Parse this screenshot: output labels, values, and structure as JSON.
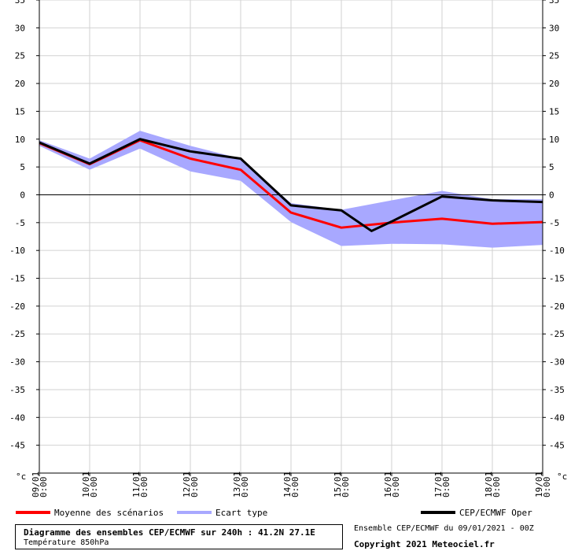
{
  "chart_data": {
    "type": "line",
    "title": "Diagramme des ensembles CEP/ECMWF sur 240h : 41.2N 27.1E",
    "subtitle": "Température 850hPa",
    "ylabel": "°c",
    "ylim": [
      -50,
      35
    ],
    "yticks": [
      35,
      30,
      25,
      20,
      15,
      10,
      5,
      0,
      -5,
      -10,
      -15,
      -20,
      -25,
      -30,
      -35,
      -40,
      -45
    ],
    "x_date_labels": [
      "09/01",
      "10/01",
      "11/01",
      "12/01",
      "13/01",
      "14/01",
      "15/01",
      "16/01",
      "17/01",
      "18/01",
      "19/01"
    ],
    "x_time_label": "0:00",
    "series": [
      {
        "name": "Moyenne des scénarios",
        "color": "#ff0000",
        "x": [
          0,
          1,
          2,
          3,
          4,
          5,
          6,
          7,
          8,
          9,
          10
        ],
        "values": [
          9.3,
          5.5,
          9.8,
          6.5,
          4.5,
          -3.2,
          -5.9,
          -5.0,
          -4.3,
          -5.2,
          -4.9
        ]
      },
      {
        "name": "Ecart type",
        "color": "#a8a8ff",
        "x": [
          0,
          1,
          2,
          3,
          4,
          5,
          6,
          7,
          8,
          9,
          10
        ],
        "upper": [
          9.8,
          6.5,
          11.5,
          8.8,
          6.5,
          -1.5,
          -2.7,
          -1.0,
          0.7,
          -0.8,
          -0.8
        ],
        "lower": [
          8.8,
          4.5,
          8.3,
          4.2,
          2.5,
          -4.9,
          -9.2,
          -8.8,
          -8.9,
          -9.5,
          -9.0
        ]
      },
      {
        "name": "CEP/ECMWF Oper",
        "color": "#000000",
        "x": [
          0,
          1,
          2,
          3,
          4,
          5,
          6,
          6.6,
          7,
          8,
          9,
          10
        ],
        "values": [
          9.4,
          5.6,
          10.0,
          7.8,
          6.5,
          -1.9,
          -2.8,
          -6.5,
          -4.8,
          -0.3,
          -1.0,
          -1.3
        ]
      }
    ],
    "footer": {
      "info": "Ensemble CEP/ECMWF du 09/01/2021 - 00Z",
      "copyright": "Copyright 2021 Meteociel.fr"
    }
  }
}
